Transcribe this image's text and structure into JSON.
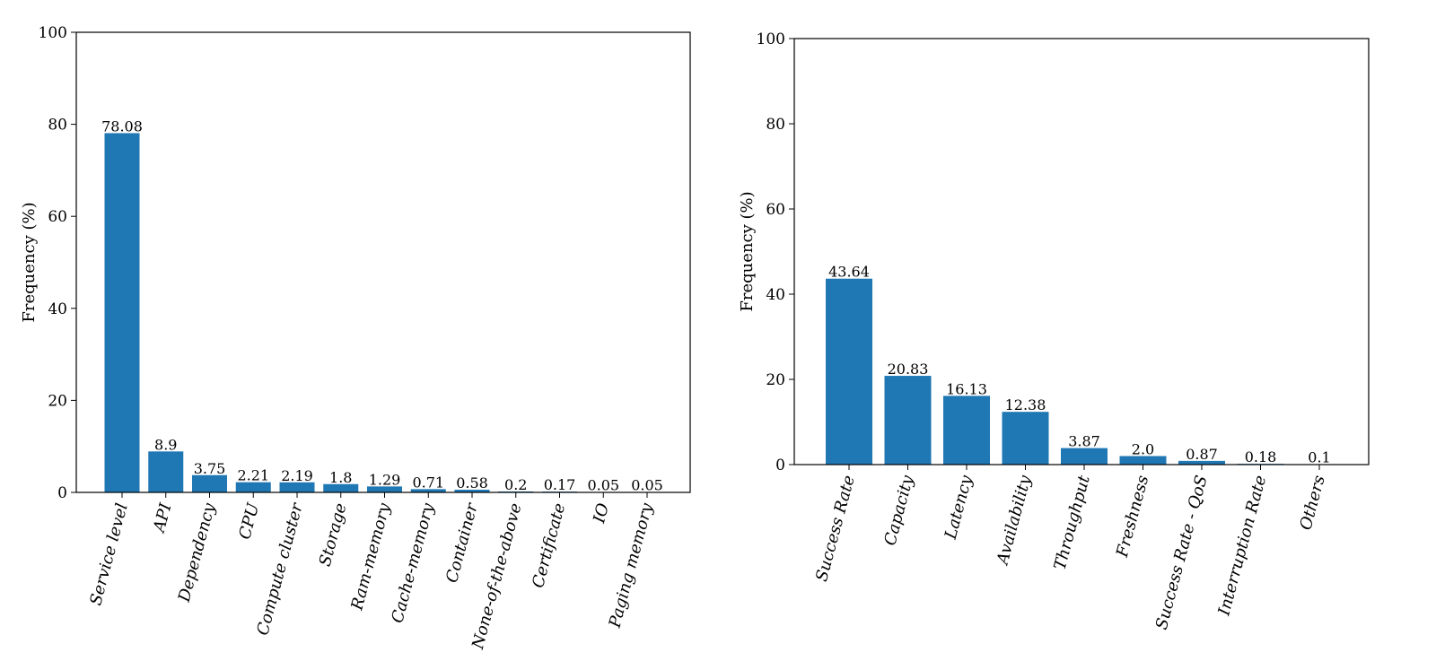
{
  "chart_data": [
    {
      "type": "bar",
      "ylabel": "Frequency (%)",
      "xlabel": "",
      "ylim": [
        0,
        100
      ],
      "yticks": [
        0,
        20,
        40,
        60,
        80,
        100
      ],
      "color": "#1f77b4",
      "categories": [
        "Service level",
        "API",
        "Dependency",
        "CPU",
        "Compute cluster",
        "Storage",
        "Ram-memory",
        "Cache-memory",
        "Container",
        "None-of-the-above",
        "Certificate",
        "IO",
        "Paging memory"
      ],
      "values": [
        78.08,
        8.9,
        3.75,
        2.21,
        2.19,
        1.8,
        1.29,
        0.71,
        0.58,
        0.2,
        0.17,
        0.05,
        0.05
      ],
      "data_labels": [
        "78.08",
        "8.9",
        "3.75",
        "2.21",
        "2.19",
        "1.8",
        "1.29",
        "0.71",
        "0.58",
        "0.2",
        "0.17",
        "0.05",
        "0.05"
      ]
    },
    {
      "type": "bar",
      "ylabel": "Frequency (%)",
      "xlabel": "",
      "ylim": [
        0,
        100
      ],
      "yticks": [
        0,
        20,
        40,
        60,
        80,
        100
      ],
      "color": "#1f77b4",
      "categories": [
        "Success Rate",
        "Capacity",
        "Latency",
        "Availability",
        "Throughput",
        "Freshness",
        "Success Rate - QoS",
        "Interruption Rate",
        "Others"
      ],
      "values": [
        43.64,
        20.83,
        16.13,
        12.38,
        3.87,
        2.0,
        0.87,
        0.18,
        0.1
      ],
      "data_labels": [
        "43.64",
        "20.83",
        "16.13",
        "12.38",
        "3.87",
        "2.0",
        "0.87",
        "0.18",
        "0.1"
      ]
    }
  ]
}
